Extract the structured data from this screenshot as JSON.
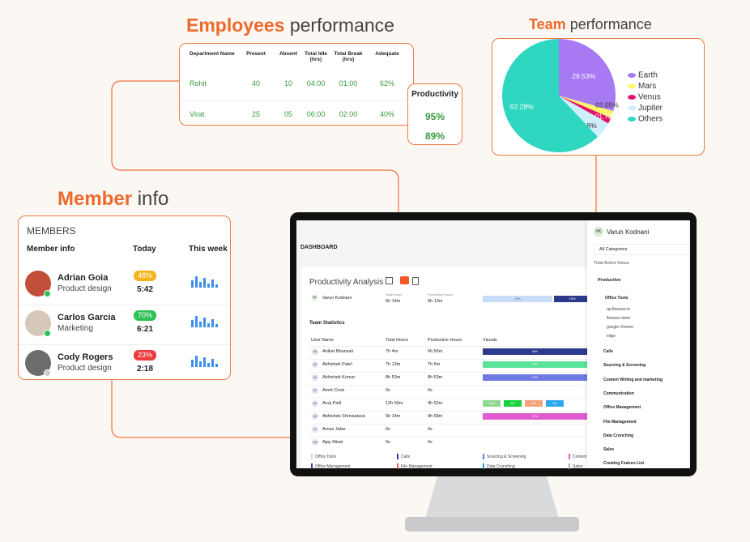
{
  "employees": {
    "title_accent": "Employees",
    "title_rest": "performance",
    "headers": [
      "Department Name",
      "Present",
      "Absent",
      "Total Idle (hrs)",
      "Total Break (hrs)",
      "Adequate"
    ],
    "rows": [
      [
        "Rohit",
        "40",
        "10",
        "04:00",
        "01:00",
        "62%"
      ],
      [
        "Virat",
        "25",
        "05",
        "06:00",
        "02:00",
        "40%"
      ]
    ],
    "productivity": {
      "title": "Productivity",
      "values": [
        "95%",
        "89%"
      ]
    }
  },
  "team": {
    "title_accent": "Team",
    "title_rest": "performance"
  },
  "chart_data": {
    "type": "pie",
    "categories": [
      "Earth",
      "Mars",
      "Venus",
      "Jupiter",
      "Others"
    ],
    "values": [
      29.53,
      2.05,
      1.72,
      4.8,
      62.28
    ],
    "value_labels": [
      "29.53%",
      "02.05%",
      "01.72%",
      "4.8%",
      "62.28%"
    ],
    "colors": [
      "#a77af4",
      "#fff56a",
      "#e2146a",
      "#cdeffb",
      "#2fd6c0"
    ],
    "legend": "right"
  },
  "members": {
    "title_accent": "Member",
    "title_rest": "info",
    "card_title": "MEMBERS",
    "headers": [
      "Member info",
      "Today",
      "This week"
    ],
    "list": [
      {
        "name": "Adrian Goia",
        "role": "Product design",
        "today": "48%",
        "time": "5:42"
      },
      {
        "name": "Carlos Garcia",
        "role": "Marketing",
        "today": "70%",
        "time": "6:21"
      },
      {
        "name": "Cody Rogers",
        "role": "Product design",
        "today": "23%",
        "time": "2:18"
      }
    ]
  },
  "dashboard": {
    "title": "DASHBOARD",
    "analysis_title": "Productivity Analysis",
    "summary_headers": [
      "Total Hours",
      "Productive Hours"
    ],
    "user": {
      "initials": "VK",
      "name": "Varun Kodnani",
      "total": "5h 14m",
      "productive": "5h 13m",
      "bar_labels": [
        "29%",
        "19%"
      ]
    },
    "stats_title": "Team Statistics",
    "headers": [
      "User Name",
      "Total Hours",
      "Productive Hours",
      "Visuals"
    ],
    "rows": [
      {
        "initials": "AB",
        "name": "Aniket Bhansali",
        "total": "7h 4m",
        "productive": "6h 56m",
        "bars": [
          "66%"
        ]
      },
      {
        "initials": "AP",
        "name": "Abhishek Patel",
        "total": "7h 13m",
        "productive": "7h 9m",
        "bars": [
          "42%"
        ]
      },
      {
        "initials": "AK",
        "name": "Abhishek Kumar",
        "total": "8h 53m",
        "productive": "8h 53m",
        "bars": [
          "72%"
        ]
      },
      {
        "initials": "AC",
        "name": "Amrit Cook",
        "total": "0s",
        "productive": "0s",
        "bars": []
      },
      {
        "initials": "AP",
        "name": "Anuj Patil",
        "total": "12h 50m",
        "productive": "4h 52m",
        "bars": [
          "13%",
          "6%",
          "4%",
          "5%"
        ]
      },
      {
        "initials": "AS",
        "name": "Abhishek Shrivastava",
        "total": "5h 14m",
        "productive": "4h 58m",
        "bars": [
          "47%"
        ]
      },
      {
        "initials": "AJ",
        "name": "Arnaz Jalse",
        "total": "0s",
        "productive": "0s",
        "bars": []
      },
      {
        "initials": "AM",
        "name": "Ajay Misal",
        "total": "0s",
        "productive": "0s",
        "bars": []
      }
    ],
    "legend": [
      "Office Tools",
      "Calls",
      "Sourcing & Screening",
      "Content",
      "Office Management",
      "File Management",
      "Data Crunching",
      "Sales"
    ]
  },
  "sidebar": {
    "initials": "VK",
    "name": "Varun Kodnani",
    "filter": "All Categories",
    "subtitle": "Total Active Hours",
    "group": "Productive",
    "open_category": "Office Tools",
    "apps": [
      "qa.flowace.in",
      "flowace timer",
      "google chrome",
      "edge"
    ],
    "categories": [
      "Calls",
      "Sourcing & Screening",
      "Content Writing and marketing",
      "Communication",
      "Office Management",
      "File Management",
      "Data Crunching",
      "Sales",
      "Creating Feature List"
    ]
  }
}
